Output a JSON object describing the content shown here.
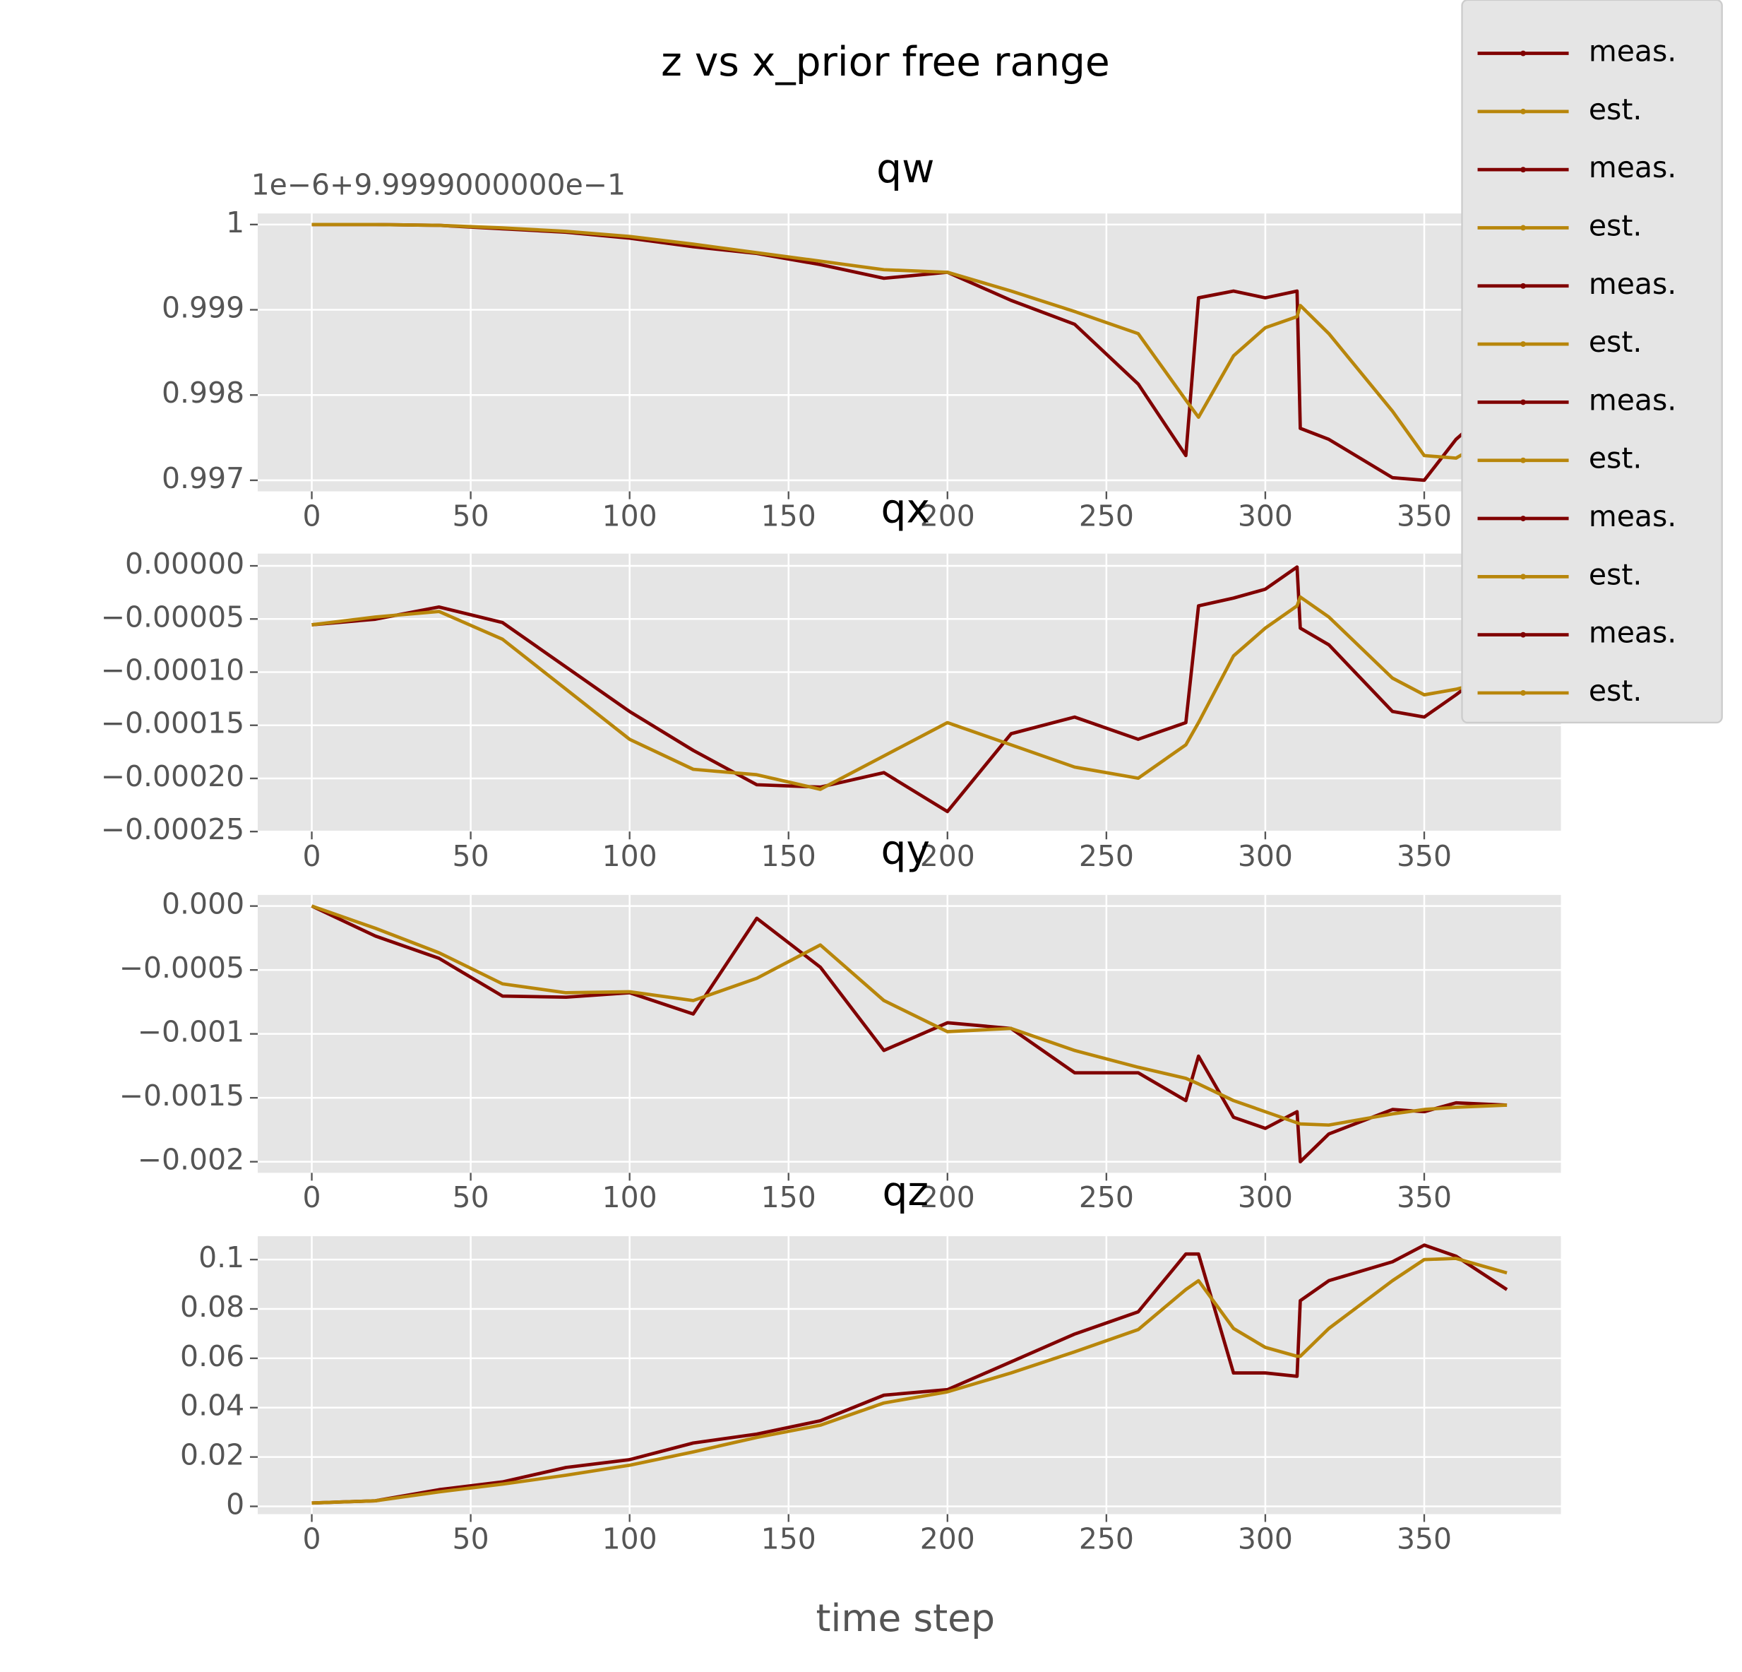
{
  "figure": {
    "title": "z vs x_prior free range",
    "xlabel": "time step",
    "legend": [
      {
        "name": "meas.",
        "color": "#800000"
      },
      {
        "name": "est.",
        "color": "#b8860b"
      },
      {
        "name": "meas.",
        "color": "#800000"
      },
      {
        "name": "est.",
        "color": "#b8860b"
      },
      {
        "name": "meas.",
        "color": "#800000"
      },
      {
        "name": "est.",
        "color": "#b8860b"
      },
      {
        "name": "meas.",
        "color": "#800000"
      },
      {
        "name": "est.",
        "color": "#b8860b"
      },
      {
        "name": "meas.",
        "color": "#800000"
      },
      {
        "name": "est.",
        "color": "#b8860b"
      },
      {
        "name": "meas.",
        "color": "#800000"
      },
      {
        "name": "est.",
        "color": "#b8860b"
      }
    ]
  },
  "chart_data": [
    {
      "type": "line",
      "title": "qw",
      "offset_text": "1e−6+9.9999000000e−1",
      "x": [
        0,
        20,
        40,
        60,
        80,
        100,
        120,
        140,
        160,
        180,
        200,
        220,
        240,
        260,
        275,
        279,
        290,
        300,
        310,
        311,
        320,
        340,
        350,
        360,
        376
      ],
      "xlim": [
        -17,
        393
      ],
      "xticks": [
        0,
        50,
        100,
        150,
        200,
        250,
        300,
        350
      ],
      "ylim": [
        0.99687,
        1.00013
      ],
      "yticks": [
        0.997,
        0.998,
        0.999,
        1
      ],
      "grid": true,
      "series": [
        {
          "name": "meas.",
          "color": "#800000",
          "values": [
            1,
            1,
            0.99999,
            0.99995,
            0.99991,
            0.99984,
            0.99974,
            0.99966,
            0.99953,
            0.99937,
            0.99944,
            0.99911,
            0.99883,
            0.99813,
            0.99729,
            0.99914,
            0.99922,
            0.99914,
            0.99922,
            0.99761,
            0.99748,
            0.99703,
            0.997,
            0.99748,
            0.998
          ]
        },
        {
          "name": "est.",
          "color": "#b8860b",
          "values": [
            1,
            1,
            0.99999,
            0.99996,
            0.99992,
            0.99986,
            0.99977,
            0.99967,
            0.99957,
            0.99947,
            0.99944,
            0.99922,
            0.99898,
            0.99872,
            0.99794,
            0.99774,
            0.99846,
            0.99879,
            0.99892,
            0.99905,
            0.99872,
            0.99781,
            0.99729,
            0.99726,
            0.99761
          ]
        }
      ]
    },
    {
      "type": "line",
      "title": "qx",
      "x": [
        0,
        20,
        40,
        60,
        80,
        100,
        120,
        140,
        160,
        180,
        200,
        220,
        240,
        260,
        275,
        279,
        290,
        300,
        310,
        311,
        320,
        340,
        350,
        360,
        376
      ],
      "xlim": [
        -17,
        393
      ],
      "xticks": [
        0,
        50,
        100,
        150,
        200,
        250,
        300,
        350
      ],
      "ylim": [
        -0.00025,
        1.15e-05
      ],
      "yticks": [
        {
          "value": -0.00025,
          "label": "−0.00025"
        },
        {
          "value": -0.0002,
          "label": "−0.00020"
        },
        {
          "value": -0.00015,
          "label": "−0.00015"
        },
        {
          "value": -0.0001,
          "label": "−0.00010"
        },
        {
          "value": -5e-05,
          "label": "−0.00005"
        },
        {
          "value": 0,
          "label": "0.00000"
        }
      ],
      "grid": true,
      "series": [
        {
          "name": "meas.",
          "color": "#800000",
          "values": [
            -5.54e-05,
            -5.02e-05,
            -3.87e-05,
            -5.33e-05,
            -9.52e-05,
            -0.000137,
            -0.0001736,
            -0.000206,
            -0.0002082,
            -0.0001946,
            -0.0002312,
            -0.000158,
            -0.0001423,
            -0.0001632,
            -0.0001475,
            -3.77e-05,
            -3.03e-05,
            -2.2e-05,
            -1e-06,
            -5.86e-05,
            -7.43e-05,
            -0.000137,
            -0.0001423,
            -0.0001213,
            -8.47e-05
          ]
        },
        {
          "name": "est.",
          "color": "#b8860b",
          "values": [
            -5.54e-05,
            -4.81e-05,
            -4.29e-05,
            -6.9e-05,
            -0.0001161,
            -0.0001632,
            -0.0001914,
            -0.0001966,
            -0.0002102,
            -0.0001789,
            -0.0001475,
            -0.0001684,
            -0.0001893,
            -0.0001998,
            -0.0001684,
            -0.0001475,
            -8.47e-05,
            -5.86e-05,
            -3.77e-05,
            -2.93e-05,
            -4.81e-05,
            -0.0001056,
            -0.0001213,
            -0.0001161,
            -0.0001036
          ]
        }
      ]
    },
    {
      "type": "line",
      "title": "qy",
      "x": [
        0,
        20,
        40,
        60,
        80,
        100,
        120,
        140,
        160,
        180,
        200,
        220,
        240,
        260,
        275,
        279,
        290,
        300,
        310,
        311,
        320,
        340,
        350,
        360,
        376
      ],
      "xlim": [
        -17,
        393
      ],
      "xticks": [
        0,
        50,
        100,
        150,
        200,
        250,
        300,
        350
      ],
      "ylim": [
        -0.002087,
        8.7e-05
      ],
      "yticks": [
        {
          "value": -0.002,
          "label": "−0.002"
        },
        {
          "value": -0.0015,
          "label": "−0.0015"
        },
        {
          "value": -0.001,
          "label": "−0.001"
        },
        {
          "value": -0.0005,
          "label": "−0.0005"
        },
        {
          "value": 0,
          "label": "0.000"
        }
      ],
      "grid": true,
      "series": [
        {
          "name": "meas.",
          "color": "#800000",
          "values": [
            0,
            -0.000235,
            -0.000409,
            -0.000704,
            -0.000713,
            -0.000678,
            -0.000844,
            -9.6e-05,
            -0.000478,
            -0.00113,
            -0.000913,
            -0.000957,
            -0.001304,
            -0.001304,
            -0.001522,
            -0.001174,
            -0.001652,
            -0.001739,
            -0.001609,
            -0.002,
            -0.001783,
            -0.001591,
            -0.001609,
            -0.001539,
            -0.001557
          ]
        },
        {
          "name": "est.",
          "color": "#b8860b",
          "values": [
            0,
            -0.000174,
            -0.000365,
            -0.000609,
            -0.000678,
            -0.00067,
            -0.000739,
            -0.000565,
            -0.000304,
            -0.000739,
            -0.000983,
            -0.000957,
            -0.00113,
            -0.001261,
            -0.001348,
            -0.001391,
            -0.001522,
            -0.001609,
            -0.001696,
            -0.001704,
            -0.001713,
            -0.001626,
            -0.001591,
            -0.001574,
            -0.001557
          ]
        }
      ]
    },
    {
      "type": "line",
      "title": "qz",
      "x": [
        0,
        20,
        40,
        60,
        80,
        100,
        120,
        140,
        160,
        180,
        200,
        220,
        240,
        260,
        275,
        279,
        290,
        300,
        310,
        311,
        320,
        340,
        350,
        360,
        376
      ],
      "xlim": [
        -17,
        393
      ],
      "xticks": [
        0,
        50,
        100,
        150,
        200,
        250,
        300,
        350
      ],
      "ylim": [
        -0.00315,
        0.10946
      ],
      "yticks": [
        0,
        0.02,
        0.04,
        0.06,
        0.08,
        0.1
      ],
      "grid": true,
      "series": [
        {
          "name": "meas.",
          "color": "#800000",
          "values": [
            0.00135,
            0.00225,
            0.00676,
            0.00991,
            0.01577,
            0.01892,
            0.02568,
            0.02928,
            0.03469,
            0.04505,
            0.0473,
            0.05857,
            0.06983,
            0.07884,
            0.10226,
            0.10226,
            0.05406,
            0.05406,
            0.05271,
            0.08334,
            0.09145,
            0.09911,
            0.10587,
            0.10136,
            0.08785
          ]
        },
        {
          "name": "est.",
          "color": "#b8860b",
          "values": [
            0.00135,
            0.00225,
            0.00586,
            0.00901,
            0.01261,
            0.01667,
            0.02207,
            0.02793,
            0.03289,
            0.0419,
            0.0464,
            0.05406,
            0.06262,
            0.07163,
            0.08785,
            0.09145,
            0.07208,
            0.06442,
            0.06082,
            0.06082,
            0.07208,
            0.09145,
            0.10001,
            0.10046,
            0.0946
          ]
        }
      ]
    }
  ]
}
